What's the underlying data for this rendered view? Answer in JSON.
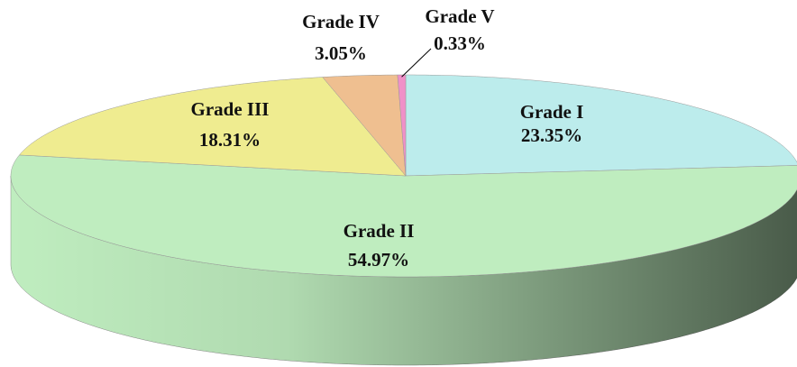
{
  "chart_data": {
    "type": "pie",
    "categories": [
      "Grade I",
      "Grade II",
      "Grade III",
      "Grade IV",
      "Grade V"
    ],
    "values": [
      23.35,
      54.97,
      18.31,
      3.05,
      0.33
    ],
    "value_labels": [
      "23.35%",
      "54.97%",
      "18.31%",
      "3.05%",
      "0.33%"
    ],
    "colors": [
      "#bcecec",
      "#bfedbf",
      "#efec90",
      "#efbf90",
      "#f090c8"
    ]
  }
}
